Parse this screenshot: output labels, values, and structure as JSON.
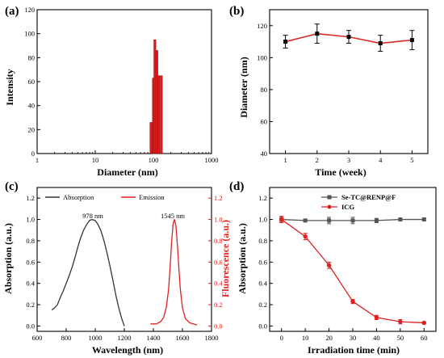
{
  "chart_data": [
    {
      "panel": "(a)",
      "type": "bar",
      "xlabel": "Diameter (nm)",
      "ylabel": "Intensity",
      "xscale": "log",
      "xlim": [
        1,
        1000
      ],
      "ylim": [
        0,
        120
      ],
      "xticks": [
        1,
        10,
        100,
        1000
      ],
      "yticks": [
        0,
        20,
        40,
        60,
        80,
        100,
        120
      ],
      "x": [
        91,
        100,
        106,
        115,
        124,
        137
      ],
      "values": [
        26,
        63,
        95,
        86,
        65,
        65
      ],
      "color": "#e01b1b",
      "grid": false
    },
    {
      "panel": "(b)",
      "type": "line",
      "xlabel": "Time (week)",
      "ylabel": "Diameter (nm)",
      "xlim": [
        0.5,
        5.5
      ],
      "ylim": [
        40,
        130
      ],
      "xticks": [
        1,
        2,
        3,
        4,
        5
      ],
      "yticks": [
        40,
        60,
        80,
        100,
        120
      ],
      "x": [
        1,
        2,
        3,
        4,
        5
      ],
      "values": [
        110,
        115,
        113,
        109,
        111
      ],
      "errors": [
        4,
        6,
        4,
        5,
        6
      ],
      "color": "#d92b2b",
      "grid": false
    },
    {
      "panel": "(c)",
      "type": "line",
      "xlabel": "Wavelength (nm)",
      "ylabel": "Absorption (a.u.)",
      "y2label": "Fluorescence (a.u.)",
      "xlim": [
        600,
        1800
      ],
      "ylim": [
        -0.05,
        1.3
      ],
      "y2lim": [
        -0.05,
        1.3
      ],
      "xticks": [
        600,
        800,
        1000,
        1200,
        1400,
        1600,
        1800
      ],
      "yticks": [
        0.0,
        0.2,
        0.4,
        0.6,
        0.8,
        1.0,
        1.2
      ],
      "y2ticks": [
        0.0,
        0.2,
        0.4,
        0.6,
        0.8,
        1.0,
        1.2
      ],
      "legend_position": "top",
      "annotations": [
        "978 nm",
        "1545 nm"
      ],
      "series": [
        {
          "name": "Absorption",
          "axis": "left",
          "color": "#333333",
          "x": [
            700,
            720,
            740,
            760,
            780,
            800,
            820,
            840,
            860,
            880,
            900,
            920,
            940,
            960,
            978,
            1000,
            1020,
            1040,
            1060,
            1080,
            1100,
            1120,
            1140,
            1160,
            1180,
            1200
          ],
          "y": [
            0.15,
            0.17,
            0.2,
            0.27,
            0.33,
            0.4,
            0.47,
            0.55,
            0.64,
            0.74,
            0.83,
            0.9,
            0.95,
            0.99,
            1.0,
            0.99,
            0.95,
            0.89,
            0.8,
            0.69,
            0.57,
            0.44,
            0.3,
            0.18,
            0.08,
            0.0
          ]
        },
        {
          "name": "Emission",
          "axis": "right",
          "color": "#e02020",
          "x": [
            1380,
            1420,
            1450,
            1470,
            1490,
            1505,
            1515,
            1525,
            1535,
            1545,
            1555,
            1565,
            1575,
            1585,
            1600,
            1620,
            1650,
            1700
          ],
          "y": [
            0.02,
            0.02,
            0.04,
            0.08,
            0.18,
            0.35,
            0.55,
            0.78,
            0.95,
            1.0,
            0.94,
            0.77,
            0.55,
            0.35,
            0.17,
            0.07,
            0.03,
            0.01
          ]
        }
      ],
      "grid": false
    },
    {
      "panel": "(d)",
      "type": "line",
      "xlabel": "Irradiation time (min)",
      "ylabel": "Absorption (a.u.)",
      "xlim": [
        -5,
        65
      ],
      "ylim": [
        -0.05,
        1.3
      ],
      "xticks": [
        0,
        10,
        20,
        30,
        40,
        50,
        60
      ],
      "yticks": [
        0.0,
        0.2,
        0.4,
        0.6,
        0.8,
        1.0,
        1.2
      ],
      "legend_position": "top-right",
      "series": [
        {
          "name": "Se-TC@RENP@F",
          "color": "#555555",
          "marker": "square",
          "x": [
            0,
            10,
            20,
            30,
            40,
            50,
            60
          ],
          "y": [
            1.0,
            0.99,
            0.99,
            0.99,
            0.99,
            1.0,
            1.0
          ],
          "errors": [
            0.02,
            0.01,
            0.03,
            0.03,
            0.02,
            0.01,
            0.01
          ]
        },
        {
          "name": "ICG",
          "color": "#e02020",
          "marker": "circle",
          "x": [
            0,
            10,
            20,
            30,
            40,
            50,
            60
          ],
          "y": [
            1.0,
            0.84,
            0.57,
            0.23,
            0.08,
            0.04,
            0.03
          ],
          "errors": [
            0.03,
            0.03,
            0.03,
            0.02,
            0.02,
            0.02,
            0.01
          ]
        }
      ],
      "grid": false
    }
  ]
}
